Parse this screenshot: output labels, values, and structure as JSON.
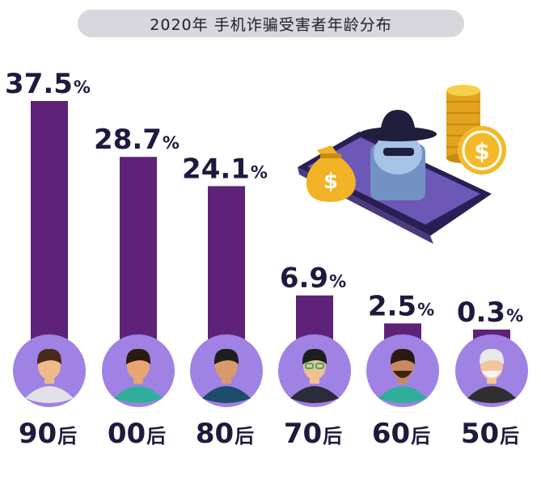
{
  "title": "2020年 手机诈骗受害者年龄分布",
  "chart_data": {
    "type": "bar",
    "title": "2020年 手机诈骗受害者年龄分布",
    "categories": [
      "90后",
      "00后",
      "80后",
      "70后",
      "60后",
      "50后"
    ],
    "values": [
      37.5,
      28.7,
      24.1,
      6.9,
      2.5,
      0.3
    ],
    "value_labels": [
      "37.5",
      "28.7",
      "24.1",
      "6.9",
      "2.5",
      "0.3"
    ],
    "unit": "%",
    "ylim": [
      0,
      37.5
    ],
    "bar_color": "#5e2379",
    "circle_color": "#9f82e3",
    "text_color": "#1f1a3d",
    "grid": false,
    "legend": "none"
  },
  "icons": [
    "person-90s-avatar",
    "person-00s-avatar",
    "person-80s-avatar",
    "person-70s-avatar",
    "person-60s-avatar",
    "person-50s-avatar",
    "phone-hacker-illustration",
    "money-bag-icon",
    "coin-stack-icon"
  ]
}
